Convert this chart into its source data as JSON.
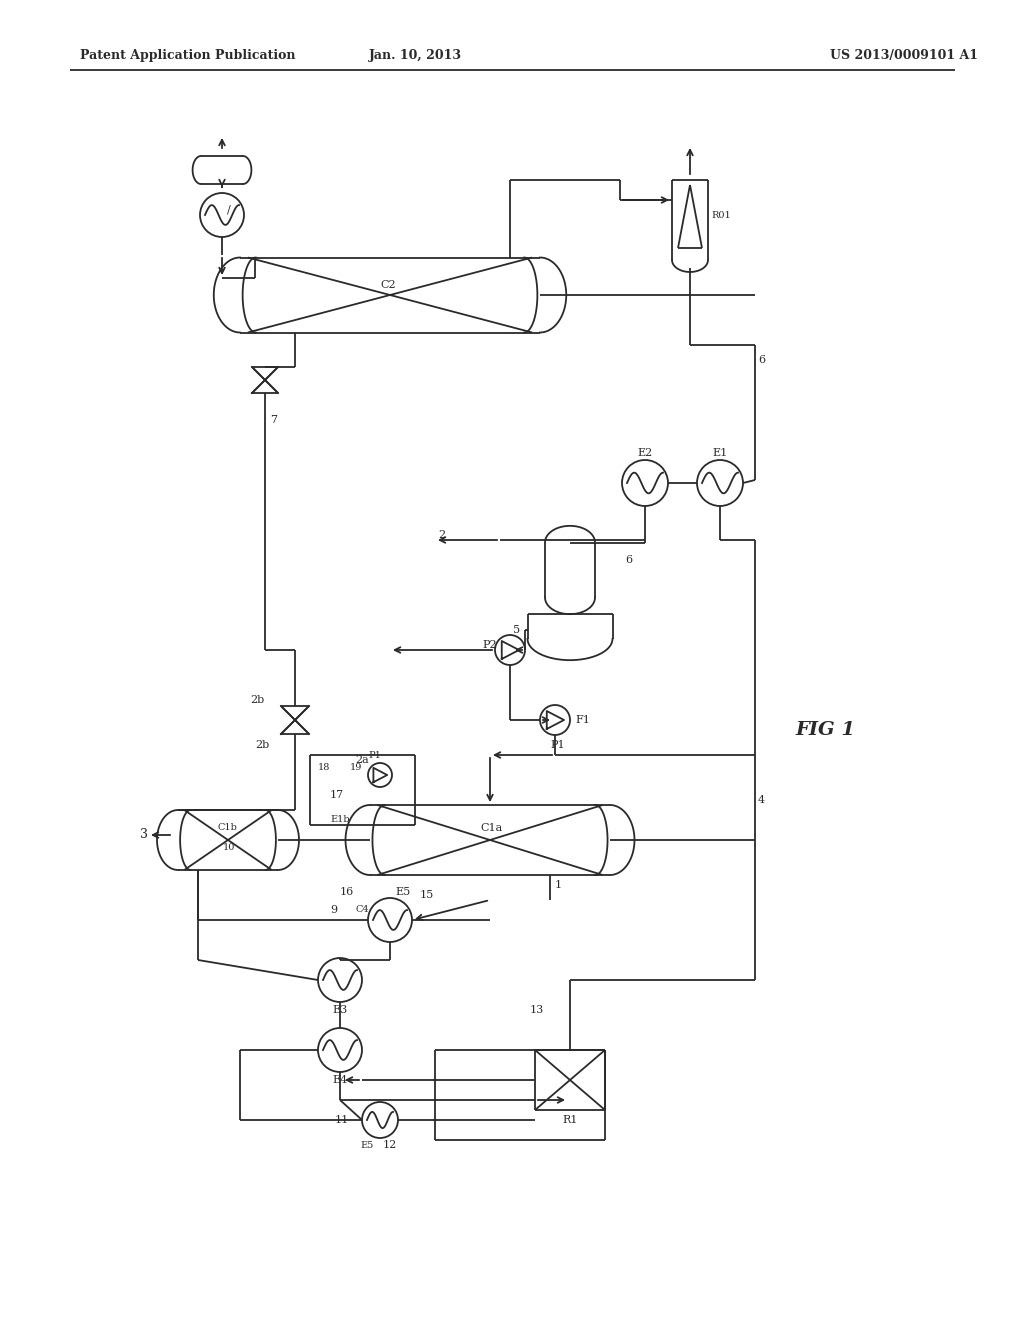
{
  "background_color": "#ffffff",
  "line_color": "#2a2a2a",
  "text_color": "#2a2a2a",
  "header_left": "Patent Application Publication",
  "header_center": "Jan. 10, 2013",
  "header_right": "US 2013/0009101 A1",
  "figure_label": "FIG 1",
  "lw": 1.3
}
